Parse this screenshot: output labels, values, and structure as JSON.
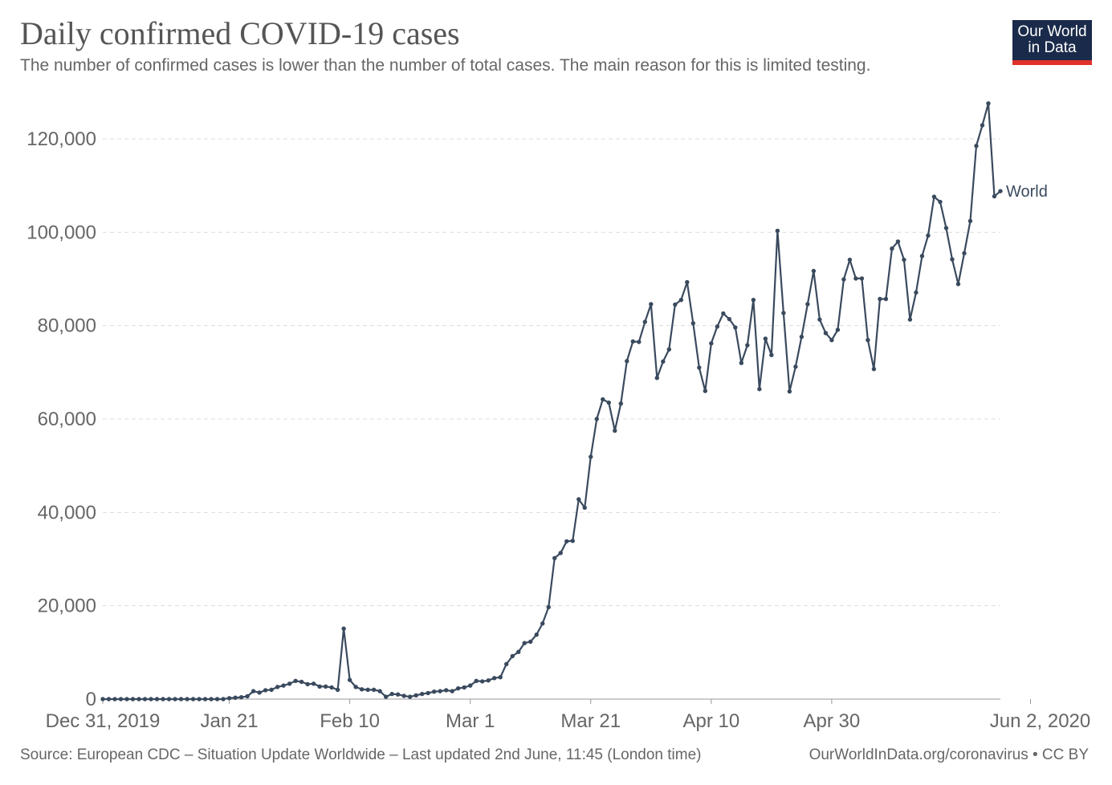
{
  "header": {
    "title": "Daily confirmed COVID-19 cases",
    "subtitle": "The number of confirmed cases is lower than the number of total cases. The main reason for this is limited testing."
  },
  "logo": {
    "line1": "Our World",
    "line2": "in Data",
    "bg_color": "#1a2a4a",
    "accent_color": "#e0322b"
  },
  "footer": {
    "source": "Source: European CDC – Situation Update Worldwide – Last updated 2nd June, 11:45 (London time)",
    "link": "OurWorldInDataorg/coronavirus • CC BY"
  },
  "chart_data": {
    "type": "line",
    "x_start": "2019-12-31",
    "ylim": [
      0,
      125000
    ],
    "y_ticks": [
      0,
      20000,
      40000,
      60000,
      80000,
      100000,
      120000
    ],
    "y_tick_labels": [
      "0",
      "20,000",
      "40,000",
      "60,000",
      "80,000",
      "100,000",
      "120,000"
    ],
    "x_tick_labels": [
      "Dec 31, 2019",
      "Jan 21",
      "Feb 10",
      "Mar 1",
      "Mar 21",
      "Apr 10",
      "Apr 30",
      "Jun 2, 2020"
    ],
    "x_tick_dates": [
      "2019-12-31",
      "2020-01-21",
      "2020-02-10",
      "2020-03-01",
      "2020-03-21",
      "2020-04-10",
      "2020-04-30",
      "2020-06-02"
    ],
    "grid": true,
    "series": [
      {
        "name": "World",
        "color": "#3a4a5e",
        "values": [
          0,
          0,
          0,
          0,
          0,
          0,
          0,
          0,
          0,
          0,
          0,
          0,
          0,
          0,
          0,
          0,
          0,
          0,
          0,
          0,
          0,
          200,
          300,
          400,
          600,
          1700,
          1400,
          1900,
          2000,
          2600,
          2900,
          3300,
          3900,
          3700,
          3200,
          3300,
          2700,
          2700,
          2500,
          2000,
          15100,
          4100,
          2600,
          2100,
          2000,
          2000,
          1700,
          500,
          1100,
          1000,
          700,
          500,
          800,
          1100,
          1300,
          1600,
          1700,
          1900,
          1700,
          2300,
          2500,
          2900,
          3900,
          3800,
          4000,
          4500,
          4700,
          7500,
          9200,
          10100,
          12000,
          12300,
          13800,
          16200,
          19700,
          30200,
          31300,
          33800,
          33900,
          42800,
          41000,
          51900,
          60000,
          64200,
          63500,
          57500,
          63300,
          72400,
          76600,
          76500,
          80800,
          84600,
          68800,
          72300,
          74900,
          84500,
          85500,
          89300,
          80500,
          71000,
          66000,
          76200,
          79800,
          82600,
          81400,
          79600,
          72000,
          75800,
          85500,
          66400,
          77200,
          73700,
          100300,
          82700,
          65900,
          71200,
          77600,
          84600,
          91700,
          81300,
          78400,
          76900,
          79100,
          89900,
          94100,
          90100,
          90100,
          76900,
          70700,
          85700,
          85700,
          96500,
          98000,
          94100,
          81300,
          87100,
          94900,
          99300,
          107600,
          106500,
          100900,
          94200,
          88900,
          95500,
          102400,
          118500,
          122900,
          127600,
          107700,
          108800
        ]
      }
    ]
  }
}
